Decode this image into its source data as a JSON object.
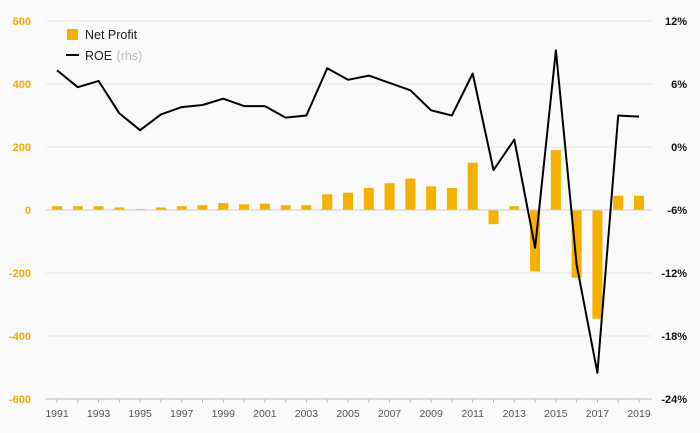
{
  "chart_data": {
    "type": "bar+line",
    "categories": [
      1991,
      1992,
      1993,
      1994,
      1995,
      1996,
      1997,
      1998,
      1999,
      2000,
      2001,
      2002,
      2003,
      2004,
      2005,
      2006,
      2007,
      2008,
      2009,
      2010,
      2011,
      2012,
      2013,
      2014,
      2015,
      2016,
      2017,
      2018,
      2019
    ],
    "x_tick_labels": [
      "1991",
      "1993",
      "1995",
      "1997",
      "1999",
      "2001",
      "2003",
      "2005",
      "2007",
      "2009",
      "2011",
      "2013",
      "2015",
      "2017",
      "2019"
    ],
    "series": [
      {
        "name": "Net Profit",
        "type": "bar",
        "axis": "left",
        "color": "#f5b000",
        "values": [
          12,
          12,
          12,
          8,
          3,
          8,
          12,
          15,
          22,
          18,
          20,
          15,
          15,
          50,
          55,
          70,
          85,
          100,
          75,
          70,
          150,
          -45,
          12,
          -195,
          190,
          -215,
          -345,
          45,
          45
        ]
      },
      {
        "name": "ROE",
        "name_suffix": "(rhs)",
        "type": "line",
        "axis": "right",
        "color": "#000000",
        "values": [
          7.3,
          5.7,
          6.3,
          3.2,
          1.6,
          3.1,
          3.8,
          4.0,
          4.6,
          3.9,
          3.9,
          2.8,
          3.0,
          7.5,
          6.4,
          6.8,
          6.1,
          5.4,
          3.5,
          3.0,
          7.0,
          -2.2,
          0.7,
          -9.6,
          9.2,
          -11.2,
          -21.5,
          3.0,
          2.9
        ]
      }
    ],
    "y_left": {
      "lim": [
        -600,
        600
      ],
      "ticks": [
        "600",
        "400",
        "200",
        "0",
        "-200",
        "-400",
        "-600"
      ],
      "values": [
        600,
        400,
        200,
        0,
        -200,
        -400,
        -600
      ],
      "color": "#f5a800"
    },
    "y_right": {
      "lim": [
        -24,
        12
      ],
      "ticks": [
        "12%",
        "6%",
        "0%",
        "-6%",
        "-12%",
        "-18%",
        "-24%"
      ],
      "values": [
        12,
        6,
        0,
        -6,
        -12,
        -18,
        -24
      ]
    },
    "grid": true,
    "legend_position": "top-left"
  }
}
